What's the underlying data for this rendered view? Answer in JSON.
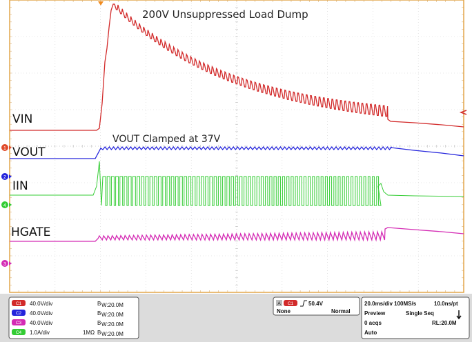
{
  "annotations": {
    "top": "200V Unsuppressed Load Dump",
    "vout": "VOUT Clamped at 37V"
  },
  "channels": [
    {
      "id": "ch1",
      "badge": "C1",
      "label": "VIN",
      "color": "#d22a2a",
      "scale": "40.0V/div",
      "coupling": "",
      "bw": "W:20.0M"
    },
    {
      "id": "ch2",
      "badge": "C2",
      "label": "VOUT",
      "color": "#2424dc",
      "scale": "40.0V/div",
      "coupling": "",
      "bw": "W:20.0M"
    },
    {
      "id": "ch3",
      "badge": "C3",
      "label": "HGATE",
      "color": "#d42bb4",
      "scale": "40.0V/div",
      "coupling": "",
      "bw": "W:20.0M"
    },
    {
      "id": "ch4",
      "badge": "C4",
      "label": "IIN",
      "color": "#33cc33",
      "scale": "1.0A/div",
      "coupling": "1MΩ",
      "bw": "W:20.0M"
    }
  ],
  "bw_prefix": "B",
  "ground_markers": {
    "ch1": "1",
    "ch2": "2",
    "ch4": "4",
    "ch3": "3"
  },
  "trigger": {
    "badge_a": "A",
    "badge_ch": "C1",
    "level": "50.4V",
    "mode": "None",
    "type": "Normal"
  },
  "timebase": {
    "rate": "20.0ms/div 100MS/s",
    "resolution": "10.0ns/pt",
    "preview": "Preview",
    "seq": "Single Seq",
    "acqs": "0 acqs",
    "rl": "RL:20.0M",
    "auto": "Auto"
  }
}
